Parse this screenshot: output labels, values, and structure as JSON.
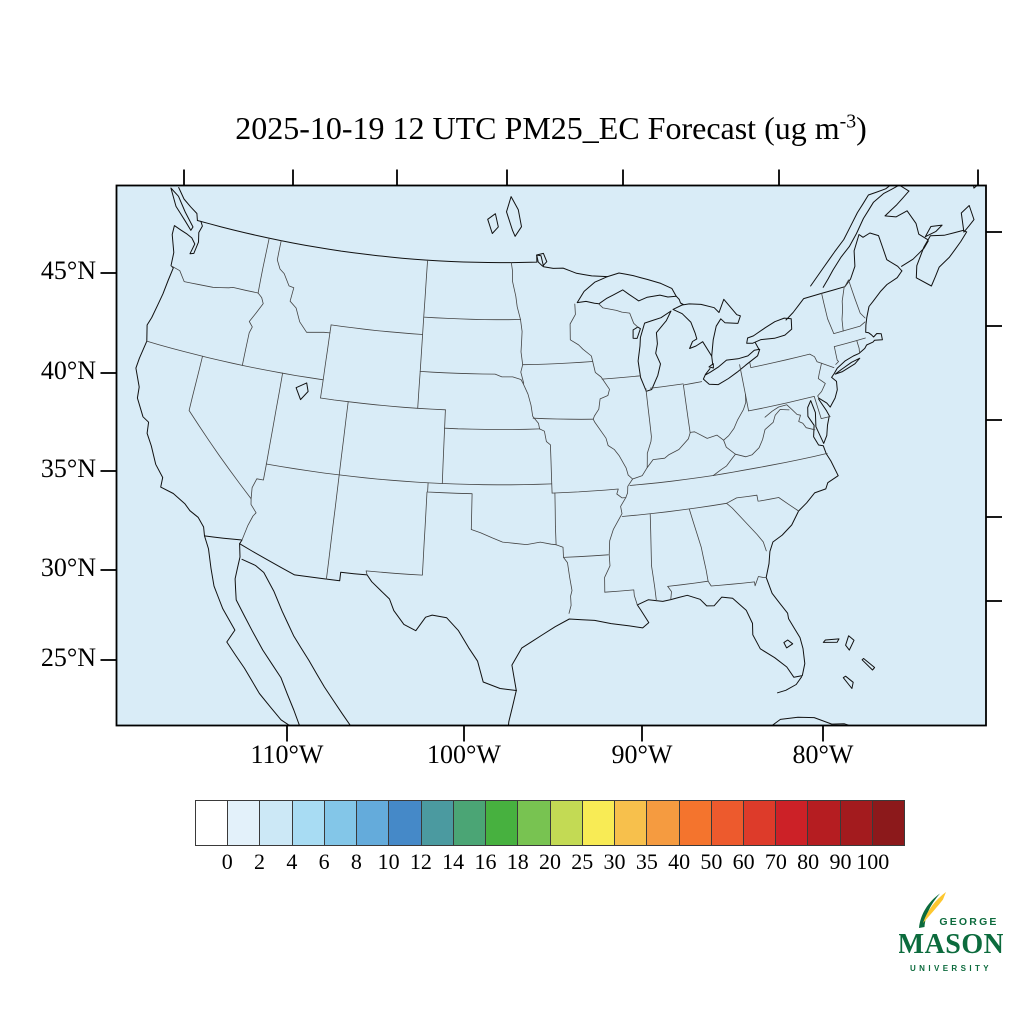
{
  "title": {
    "prefix": "2025-10-19 12 UTC PM25_EC Forecast (ug m",
    "exponent": "-3",
    "suffix": ")"
  },
  "axes": {
    "lat_labels": [
      "45°N",
      "40°N",
      "35°N",
      "30°N",
      "25°N"
    ],
    "lon_labels": [
      "110°W",
      "100°W",
      "90°W",
      "80°W"
    ]
  },
  "map": {
    "fill": "#d9ecf7",
    "coast_color": "#111111",
    "state_color": "#444444",
    "frame_color": "#000000"
  },
  "colorbar": {
    "tick_labels": [
      "0",
      "2",
      "4",
      "6",
      "8",
      "10",
      "12",
      "14",
      "16",
      "18",
      "20",
      "25",
      "30",
      "35",
      "40",
      "50",
      "60",
      "70",
      "80",
      "90",
      "100"
    ],
    "colors": [
      "#ffffff",
      "#e3f1fa",
      "#cce8f6",
      "#a8dcf3",
      "#83c6e8",
      "#64abdb",
      "#4589c8",
      "#4b9aa0",
      "#4ba575",
      "#47b13f",
      "#78c351",
      "#c3da54",
      "#f8eb55",
      "#f7c04c",
      "#f59b40",
      "#f4742d",
      "#ed5a2d",
      "#dd3b2a",
      "#cc2127",
      "#b51d21",
      "#a31b1e",
      "#8c191b"
    ]
  },
  "logo": {
    "top": "GEORGE",
    "name": "MASON",
    "bottom": "UNIVERSITY",
    "green": "#0c6b3d",
    "gold": "#fdc72f"
  },
  "chart_data": {
    "type": "heatmap",
    "title": "2025-10-19 12 UTC PM25_EC Forecast (ug m-3)",
    "variable": "PM25_EC",
    "units": "ug m-3",
    "valid_time": "2025-10-19 12 UTC",
    "x_ticks": [
      "110°W",
      "100°W",
      "90°W",
      "80°W"
    ],
    "y_ticks": [
      "45°N",
      "40°N",
      "35°N",
      "30°N",
      "25°N"
    ],
    "colorbar_levels": [
      0,
      2,
      4,
      6,
      8,
      10,
      12,
      14,
      16,
      18,
      20,
      25,
      30,
      35,
      40,
      50,
      60,
      70,
      80,
      90,
      100
    ],
    "colorbar_colors": [
      "#ffffff",
      "#e3f1fa",
      "#cce8f6",
      "#a8dcf3",
      "#83c6e8",
      "#64abdb",
      "#4589c8",
      "#4b9aa0",
      "#4ba575",
      "#47b13f",
      "#78c351",
      "#c3da54",
      "#f8eb55",
      "#f7c04c",
      "#f59b40",
      "#f4742d",
      "#ed5a2d",
      "#dd3b2a",
      "#cc2127",
      "#b51d21",
      "#a31b1e",
      "#8c191b"
    ],
    "field_summary": "Entire CONUS map domain shaded in the lowest 0-2 ug m-3 bin (uniform pale blue); no elevated PM2.5 EC anywhere."
  }
}
